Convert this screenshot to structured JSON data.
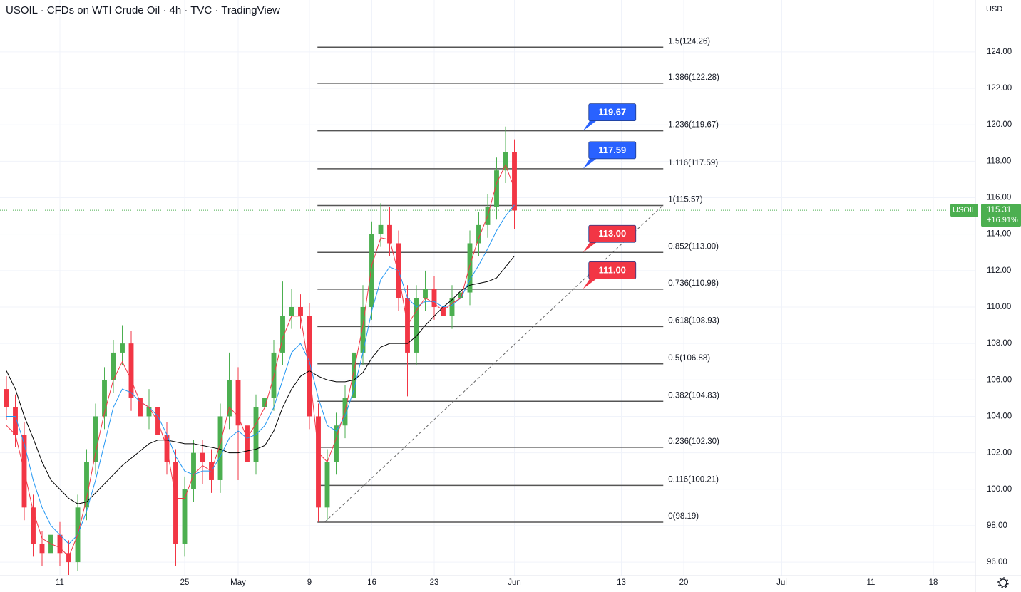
{
  "chart_data": {
    "type": "candlestick",
    "title": "USOIL · CFDs on WTI Crude Oil · 4h · TVC · TradingView",
    "currency": "USD",
    "x": [
      -6,
      -5,
      -4,
      -3,
      -2,
      -1,
      0,
      1,
      2,
      3,
      4,
      5,
      6,
      7,
      8,
      9,
      10,
      11,
      12,
      13,
      14,
      15,
      16,
      17,
      18,
      19,
      20,
      21,
      22,
      23,
      24,
      25,
      26,
      27,
      28,
      29,
      30,
      31,
      32,
      33,
      34,
      35,
      36,
      37,
      38,
      39,
      40,
      41,
      42,
      43,
      44,
      45,
      46,
      47,
      48,
      49,
      50,
      51
    ],
    "open": [
      105.5,
      104.5,
      103.0,
      99.0,
      97.0,
      96.5,
      97.5,
      96.5,
      96.0,
      99.0,
      101.5,
      104.0,
      106.0,
      107.5,
      108.0,
      105.0,
      104.0,
      104.5,
      103.0,
      101.5,
      97.0,
      100.0,
      102.0,
      101.5,
      100.5,
      104.0,
      106.0,
      103.5,
      101.5,
      104.5,
      105.0,
      107.5,
      109.5,
      110.0,
      109.5,
      104.0,
      99.0,
      101.5,
      103.5,
      105.0,
      107.5,
      110.0,
      114.0,
      114.5,
      113.5,
      110.5,
      107.5,
      110.5,
      111.0,
      110.0,
      109.5,
      110.5,
      110.8,
      113.5,
      114.5,
      115.5,
      117.5,
      118.5
    ],
    "high": [
      106.2,
      105.2,
      103.7,
      99.7,
      97.7,
      98.2,
      98.2,
      97.2,
      99.7,
      102.2,
      104.7,
      106.7,
      108.2,
      109.0,
      108.7,
      105.7,
      105.5,
      105.2,
      103.7,
      102.2,
      100.7,
      102.7,
      102.7,
      102.2,
      104.7,
      107.5,
      106.7,
      104.2,
      105.2,
      106.0,
      108.2,
      111.4,
      111.0,
      110.7,
      110.2,
      104.7,
      102.2,
      104.2,
      105.7,
      108.2,
      111.2,
      114.7,
      115.7,
      115.5,
      114.2,
      111.2,
      111.2,
      112.0,
      111.7,
      110.7,
      111.2,
      111.5,
      114.2,
      115.2,
      116.2,
      118.2,
      119.9,
      119.2
    ],
    "low": [
      103.8,
      102.3,
      98.3,
      96.3,
      95.8,
      95.8,
      95.8,
      95.3,
      95.5,
      98.3,
      100.8,
      103.3,
      105.3,
      106.8,
      104.3,
      103.3,
      103.3,
      102.3,
      100.8,
      95.8,
      96.3,
      99.3,
      100.3,
      99.8,
      99.8,
      103.3,
      100.5,
      100.8,
      100.8,
      103.8,
      104.3,
      106.8,
      108.8,
      108.8,
      103.3,
      98.2,
      98.3,
      100.8,
      102.8,
      104.3,
      106.8,
      109.3,
      113.3,
      112.8,
      109.8,
      105.1,
      106.8,
      109.8,
      109.3,
      108.8,
      108.8,
      109.8,
      110.1,
      112.8,
      113.8,
      114.8,
      116.8,
      114.3
    ],
    "close": [
      104.5,
      103.0,
      99.0,
      97.0,
      96.5,
      97.5,
      96.5,
      96.0,
      99.0,
      101.5,
      104.0,
      106.0,
      107.5,
      108.0,
      105.0,
      104.0,
      104.5,
      103.0,
      101.5,
      97.0,
      100.0,
      102.0,
      101.5,
      100.5,
      104.0,
      106.0,
      103.5,
      101.5,
      104.5,
      105.0,
      107.5,
      109.5,
      110.0,
      109.5,
      104.0,
      99.0,
      101.5,
      103.5,
      105.0,
      107.5,
      110.0,
      114.0,
      114.5,
      113.5,
      110.5,
      107.5,
      110.5,
      111.0,
      110.0,
      109.5,
      110.5,
      110.8,
      113.5,
      114.5,
      115.5,
      117.5,
      118.5,
      115.3
    ],
    "up_color": "#4caf50",
    "down_color": "#f23645",
    "moving_averages": [
      {
        "color": "#000000",
        "values": [
          106.5,
          105.5,
          104.0,
          102.8,
          101.5,
          100.5,
          100.0,
          99.5,
          99.2,
          99.3,
          99.8,
          100.3,
          100.8,
          101.3,
          101.7,
          102.1,
          102.5,
          102.7,
          102.7,
          102.6,
          102.5,
          102.5,
          102.4,
          102.3,
          102.2,
          102.0,
          102.0,
          102.1,
          102.2,
          102.4,
          103.2,
          104.5,
          105.5,
          106.2,
          106.5,
          106.2,
          106.0,
          105.9,
          105.9,
          106.0,
          106.4,
          107.2,
          107.8,
          108.0,
          108.0,
          108.0,
          108.4,
          109.0,
          109.5,
          110.0,
          110.4,
          110.9,
          111.2,
          111.3,
          111.4,
          111.6,
          112.2,
          112.8
        ]
      },
      {
        "color": "#2196f3",
        "values": [
          104.0,
          104.0,
          102.5,
          100.5,
          99.0,
          98.0,
          97.5,
          97.0,
          97.5,
          98.8,
          100.5,
          102.5,
          104.5,
          105.5,
          105.3,
          104.8,
          104.5,
          104.0,
          103.0,
          101.8,
          101.0,
          100.8,
          101.0,
          101.0,
          101.8,
          102.8,
          103.2,
          102.8,
          103.0,
          103.5,
          104.5,
          106.0,
          107.5,
          108.0,
          107.0,
          105.0,
          103.5,
          103.2,
          104.0,
          105.5,
          107.5,
          109.8,
          111.5,
          112.2,
          112.0,
          110.5,
          110.0,
          110.3,
          110.3,
          110.0,
          110.1,
          110.5,
          111.5,
          112.3,
          113.2,
          114.2,
          115.0,
          115.6
        ]
      },
      {
        "color": "#f23645",
        "values": [
          103.5,
          103.0,
          101.0,
          98.8,
          97.3,
          97.0,
          96.8,
          96.3,
          97.5,
          99.5,
          102.0,
          104.2,
          106.0,
          107.0,
          106.0,
          104.8,
          104.5,
          103.7,
          102.3,
          99.5,
          99.5,
          100.8,
          101.3,
          101.0,
          102.5,
          104.5,
          104.0,
          102.8,
          103.6,
          104.5,
          106.2,
          108.3,
          109.5,
          109.5,
          106.5,
          102.0,
          101.5,
          102.8,
          104.3,
          106.5,
          109.0,
          112.3,
          113.8,
          113.7,
          111.8,
          109.0,
          109.8,
          110.5,
          110.2,
          109.8,
          110.2,
          110.5,
          112.3,
          113.8,
          115.0,
          116.8,
          117.8,
          116.5
        ]
      }
    ],
    "xlim": [
      -6.72,
      102.72
    ],
    "ylim": [
      95.26,
      126.85
    ],
    "xticks": [
      {
        "value": 0,
        "label": "11"
      },
      {
        "value": 14,
        "label": "25"
      },
      {
        "value": 20,
        "label": "May"
      },
      {
        "value": 28,
        "label": "9"
      },
      {
        "value": 35,
        "label": "16"
      },
      {
        "value": 42,
        "label": "23"
      },
      {
        "value": 51,
        "label": "Jun"
      },
      {
        "value": 63,
        "label": "13"
      },
      {
        "value": 70,
        "label": "20"
      },
      {
        "value": 81,
        "label": "Jul"
      },
      {
        "value": 91,
        "label": "11"
      },
      {
        "value": 98,
        "label": "18"
      }
    ],
    "yticks": [
      {
        "value": 96,
        "label": "96.00"
      },
      {
        "value": 98,
        "label": "98.00"
      },
      {
        "value": 100,
        "label": "100.00"
      },
      {
        "value": 102,
        "label": "102.00"
      },
      {
        "value": 104,
        "label": "104.00"
      },
      {
        "value": 106,
        "label": "106.00"
      },
      {
        "value": 108,
        "label": "108.00"
      },
      {
        "value": 110,
        "label": "110.00"
      },
      {
        "value": 112,
        "label": "112.00"
      },
      {
        "value": 114,
        "label": "114.00"
      },
      {
        "value": 116,
        "label": "116.00"
      },
      {
        "value": 118,
        "label": "118.00"
      },
      {
        "value": 120,
        "label": "120.00"
      },
      {
        "value": 122,
        "label": "122.00"
      },
      {
        "value": 124,
        "label": "124.00"
      }
    ],
    "grid": true,
    "fib_levels": {
      "x_range": [
        28.9,
        67.7
      ],
      "color": "#555555",
      "levels": [
        {
          "value": 124.26,
          "label": "1.5(124.26)"
        },
        {
          "value": 122.28,
          "label": "1.386(122.28)"
        },
        {
          "value": 119.67,
          "label": "1.236(119.67)"
        },
        {
          "value": 117.59,
          "label": "1.116(117.59)"
        },
        {
          "value": 115.57,
          "label": "1(115.57)"
        },
        {
          "value": 113.0,
          "label": "0.852(113.00)"
        },
        {
          "value": 110.98,
          "label": "0.736(110.98)"
        },
        {
          "value": 108.93,
          "label": "0.618(108.93)"
        },
        {
          "value": 106.88,
          "label": "0.5(106.88)"
        },
        {
          "value": 104.83,
          "label": "0.382(104.83)"
        },
        {
          "value": 102.3,
          "label": "0.236(102.30)"
        },
        {
          "value": 100.21,
          "label": "0.116(100.21)"
        },
        {
          "value": 98.19,
          "label": "0(98.19)"
        }
      ]
    },
    "trendline": {
      "x": [
        29.7,
        67.7
      ],
      "y": [
        98.19,
        115.6
      ],
      "color": "#666666"
    },
    "callouts": [
      {
        "x": 58.7,
        "value": 119.67,
        "label": "119.67",
        "color": "#2962ff"
      },
      {
        "x": 58.7,
        "value": 117.59,
        "label": "117.59",
        "color": "#2962ff"
      },
      {
        "x": 58.7,
        "value": 113,
        "label": "113.00",
        "color": "#f23645"
      },
      {
        "x": 58.7,
        "value": 111,
        "label": "111.00",
        "color": "#f23645"
      }
    ],
    "last_price": {
      "symbol": "USOIL",
      "value": 115.31,
      "change": 16.91,
      "change_label": "+16.91%",
      "color": "#4caf50"
    }
  }
}
